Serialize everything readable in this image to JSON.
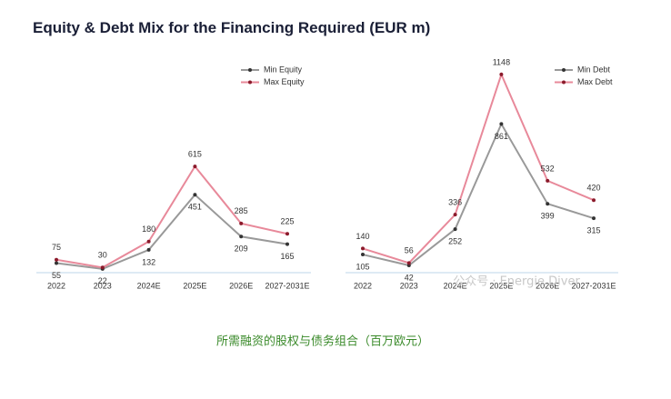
{
  "header": {
    "title": "Equity & Debt Mix for the Financing Required (EUR m)"
  },
  "caption": "所需融资的股权与债务组合（百万欧元）",
  "watermark": "公众号 · Energie Diver",
  "chart_data": [
    {
      "type": "line",
      "categories": [
        "2022",
        "2023",
        "2024E",
        "2025E",
        "2026E",
        "2027-2031E"
      ],
      "series": [
        {
          "name": "Min Equity",
          "color": "#999999",
          "values": [
            55,
            22,
            132,
            451,
            209,
            165
          ]
        },
        {
          "name": "Max Equity",
          "color": "#e8899a",
          "values": [
            75,
            30,
            180,
            615,
            285,
            225
          ]
        }
      ]
    },
    {
      "type": "line",
      "categories": [
        "2022",
        "2023",
        "2024E",
        "2025E",
        "2026E",
        "2027-2031E"
      ],
      "series": [
        {
          "name": "Min Debt",
          "color": "#999999",
          "values": [
            105,
            42,
            252,
            861,
            399,
            315
          ]
        },
        {
          "name": "Max Debt",
          "color": "#e8899a",
          "values": [
            140,
            56,
            336,
            1148,
            532,
            420
          ]
        }
      ]
    }
  ]
}
